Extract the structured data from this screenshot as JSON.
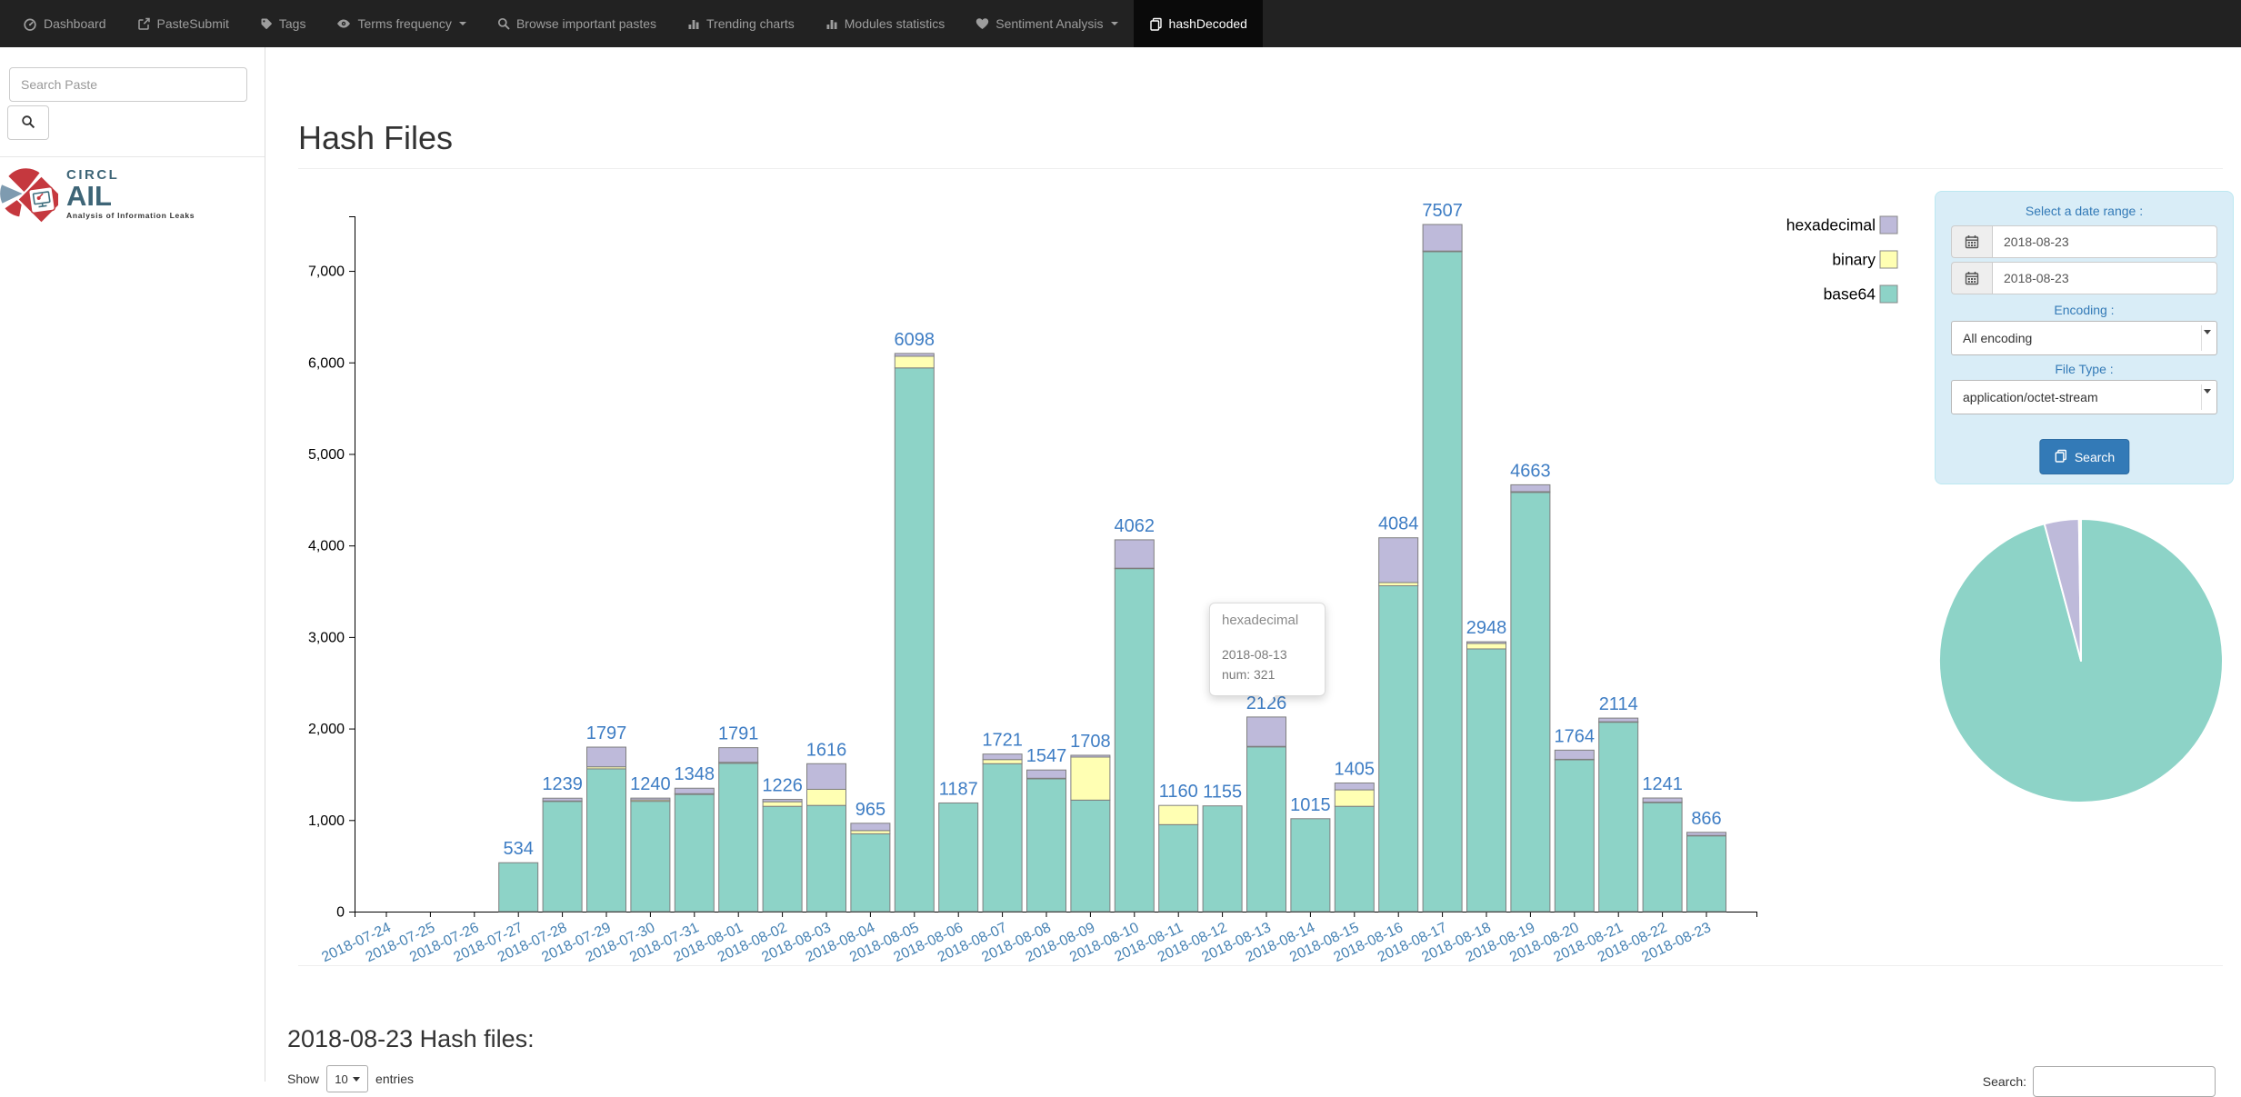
{
  "navbar": {
    "items": [
      {
        "label": "Dashboard",
        "icon": "dashboard-icon",
        "active": false,
        "caret": false
      },
      {
        "label": "PasteSubmit",
        "icon": "paste-submit-icon",
        "active": false,
        "caret": false
      },
      {
        "label": "Tags",
        "icon": "tag-icon",
        "active": false,
        "caret": false
      },
      {
        "label": "Terms frequency",
        "icon": "eye-icon",
        "active": false,
        "caret": true
      },
      {
        "label": "Browse important pastes",
        "icon": "search-icon",
        "active": false,
        "caret": false
      },
      {
        "label": "Trending charts",
        "icon": "bar-chart-icon",
        "active": false,
        "caret": false
      },
      {
        "label": "Modules statistics",
        "icon": "bar-chart-icon",
        "active": false,
        "caret": false
      },
      {
        "label": "Sentiment Analysis",
        "icon": "heart-icon",
        "active": false,
        "caret": true
      },
      {
        "label": "hashDecoded",
        "icon": "files-icon",
        "active": true,
        "caret": false
      }
    ]
  },
  "sidebar": {
    "search_placeholder": "Search Paste",
    "logo": {
      "brand": "CIRCL",
      "product": "AIL",
      "subtitle": "Analysis of Information Leaks"
    }
  },
  "page": {
    "title": "Hash Files"
  },
  "filters": {
    "title": "Select a date range :",
    "date_from": "2018-08-23",
    "date_to": "2018-08-23",
    "encoding_label": "Encoding :",
    "encoding_value": "All encoding",
    "file_type_label": "File Type :",
    "file_type_value": "application/octet-stream",
    "search_button": "Search"
  },
  "tooltip": {
    "title": "hexadecimal",
    "date": "2018-08-13",
    "num": "num: 321"
  },
  "bottom": {
    "heading": "2018-08-23 Hash files:",
    "show_label": "Show",
    "page_size": "10",
    "entries_label": "entries",
    "search_label": "Search:"
  },
  "colors": {
    "accent_blue": "#337ab7",
    "navbar_bg": "#222222",
    "navbar_active_bg": "#0a0a0a",
    "panel_bg": "#d9edf7",
    "base64": "#8dd3c7",
    "binary": "#ffffb3",
    "hexadecimal": "#bebada"
  },
  "chart_data": [
    {
      "type": "bar",
      "stacked": true,
      "title": "Hash Files",
      "categories": [
        "2018-07-24",
        "2018-07-25",
        "2018-07-26",
        "2018-07-27",
        "2018-07-28",
        "2018-07-29",
        "2018-07-30",
        "2018-07-31",
        "2018-08-01",
        "2018-08-02",
        "2018-08-03",
        "2018-08-04",
        "2018-08-05",
        "2018-08-06",
        "2018-08-07",
        "2018-08-08",
        "2018-08-09",
        "2018-08-10",
        "2018-08-11",
        "2018-08-12",
        "2018-08-13",
        "2018-08-14",
        "2018-08-15",
        "2018-08-16",
        "2018-08-17",
        "2018-08-18",
        "2018-08-19",
        "2018-08-20",
        "2018-08-21",
        "2018-08-22",
        "2018-08-23"
      ],
      "series": [
        {
          "name": "base64",
          "color": "#8dd3c7",
          "values": [
            0,
            0,
            0,
            534,
            1205,
            1560,
            1205,
            1280,
            1620,
            1150,
            1160,
            850,
            5940,
            1187,
            1616,
            1450,
            1218,
            3750,
            950,
            1155,
            1800,
            1015,
            1150,
            3560,
            7210,
            2870,
            4580,
            1660,
            2070,
            1190,
            830
          ]
        },
        {
          "name": "binary",
          "color": "#ffffb3",
          "values": [
            0,
            0,
            0,
            0,
            4,
            22,
            15,
            8,
            11,
            50,
            176,
            35,
            128,
            0,
            45,
            7,
            470,
            2,
            210,
            0,
            5,
            0,
            180,
            35,
            7,
            60,
            8,
            4,
            4,
            6,
            2
          ]
        },
        {
          "name": "hexadecimal",
          "color": "#bebada",
          "values": [
            0,
            0,
            0,
            0,
            30,
            215,
            20,
            60,
            160,
            26,
            280,
            80,
            30,
            0,
            60,
            90,
            20,
            310,
            0,
            0,
            321,
            0,
            75,
            489,
            290,
            18,
            75,
            100,
            40,
            45,
            34
          ]
        }
      ],
      "totals": [
        0,
        0,
        0,
        534,
        1239,
        1797,
        1240,
        1348,
        1791,
        1226,
        1616,
        965,
        6098,
        1187,
        1721,
        1547,
        1708,
        4062,
        1160,
        1155,
        2126,
        1015,
        1405,
        4084,
        7507,
        2948,
        4663,
        1764,
        2114,
        1241,
        866
      ],
      "ylim": [
        0,
        7507
      ],
      "y_ticks": [
        0,
        1000,
        2000,
        3000,
        4000,
        5000,
        6000,
        7000
      ],
      "y_tick_labels": [
        "0",
        "1,000",
        "2,000",
        "3,000",
        "4,000",
        "5,000",
        "6,000",
        "7,000"
      ],
      "legend": [
        "hexadecimal",
        "binary",
        "base64"
      ],
      "legend_position": "right-top",
      "grid": false,
      "bar_stroke": "#7f7f7f",
      "label_color": "#3e7dc4",
      "axis_label_color": "#4682b4"
    },
    {
      "type": "pie",
      "slices": [
        {
          "label": "base64",
          "value": 830,
          "color": "#8dd3c7"
        },
        {
          "label": "hexadecimal",
          "value": 34,
          "color": "#bebada"
        },
        {
          "label": "binary",
          "value": 2,
          "color": "#ffffb3"
        }
      ],
      "stroke": "#ffffff"
    }
  ]
}
